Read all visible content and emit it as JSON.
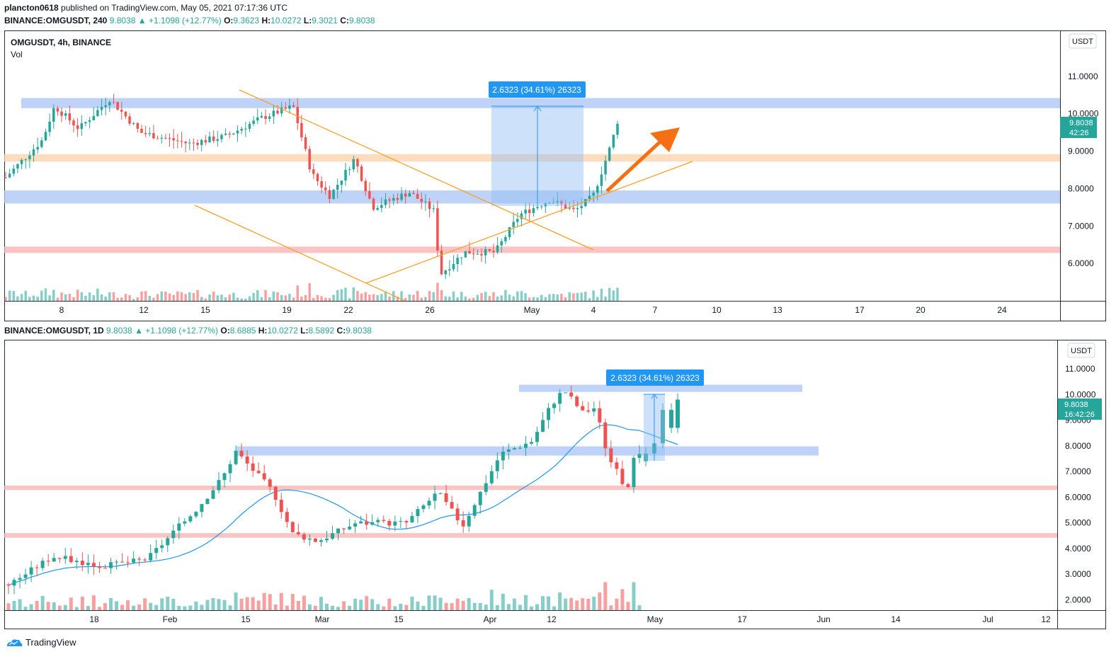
{
  "publish_line": {
    "user": "plancton0618",
    "text": " published on TradingView.com, May 05, 2021 07:17:36 UTC"
  },
  "chart_data": [
    {
      "type": "candlestick",
      "symbol_line": {
        "symbol": "BINANCE:OMGUSDT, 240",
        "last": "9.8038",
        "change": "▲ +1.1098 (+12.77%)",
        "o_label": "O:",
        "o": "9.3623",
        "h_label": "H:",
        "h": "10.0272",
        "l_label": "L:",
        "l": "9.3021",
        "c_label": "C:",
        "c": "9.8038"
      },
      "legend_title": "OMGUSDT, 4h, BINANCE",
      "legend_sub": "Vol",
      "currency": "USDT",
      "y_range": [
        5.0,
        12.0
      ],
      "y_ticks": [
        "11.0000",
        "10.0000",
        "9.0000",
        "8.0000",
        "7.0000",
        "6.0000"
      ],
      "y_tick_values": [
        11,
        10,
        9,
        8,
        7,
        6
      ],
      "top_tick": "1",
      "x_ticks": [
        "8",
        "12",
        "15",
        "19",
        "22",
        "26",
        "May",
        "4",
        "7",
        "10",
        "13",
        "17",
        "20",
        "24"
      ],
      "last_price_label": "9.8038",
      "countdown": "42:26",
      "measure_label": "2.6323 (34.61%) 26323",
      "zones": [
        {
          "from": 10.15,
          "to": 10.42,
          "color": "#a9c4f5"
        },
        {
          "from": 8.72,
          "to": 8.92,
          "color": "#fcd2a8"
        },
        {
          "from": 7.6,
          "to": 7.95,
          "color": "#a9c4f5"
        },
        {
          "from": 6.28,
          "to": 6.45,
          "color": "#f8b0b0"
        }
      ],
      "accent_up": "#26a69a",
      "accent_down": "#ef5350",
      "trend_color": "#f7a12b",
      "arrow_color": "#f66f13"
    },
    {
      "type": "candlestick",
      "symbol_line": {
        "symbol": "BINANCE:OMGUSDT, 1D",
        "last": "9.8038",
        "change": "▲ +1.1098 (+12.77%)",
        "o_label": "O:",
        "o": "8.6885",
        "h_label": "H:",
        "h": "10.0272",
        "l_label": "L:",
        "l": "8.5892",
        "c_label": "C:",
        "c": "9.8038"
      },
      "currency": "USDT",
      "y_range": [
        1.6,
        11.8
      ],
      "y_ticks": [
        "11.0000",
        "10.0000",
        "9.0000",
        "8.0000",
        "7.0000",
        "6.0000",
        "5.0000",
        "4.0000",
        "3.0000",
        "2.0000"
      ],
      "y_tick_values": [
        11,
        10,
        9,
        8,
        7,
        6,
        5,
        4,
        3,
        2
      ],
      "top_tick": "1",
      "x_ticks": [
        "18",
        "Feb",
        "15",
        "Mar",
        "15",
        "Apr",
        "12",
        "May",
        "17",
        "Jun",
        "14",
        "Jul",
        "12"
      ],
      "last_price_label": "9.8038",
      "countdown": "16:42:26",
      "measure_label": "2.6323 (34.61%) 26323",
      "zones": [
        {
          "from": 10.1,
          "to": 10.38,
          "color": "#a9c4f5"
        },
        {
          "from": 7.62,
          "to": 7.98,
          "color": "#a9c4f5"
        },
        {
          "from": 6.28,
          "to": 6.45,
          "color": "#f8b0b0"
        },
        {
          "from": 4.42,
          "to": 4.6,
          "color": "#f8b0b0"
        }
      ],
      "ma_color": "#2196f3"
    }
  ],
  "footer": {
    "brand": "TradingView"
  }
}
